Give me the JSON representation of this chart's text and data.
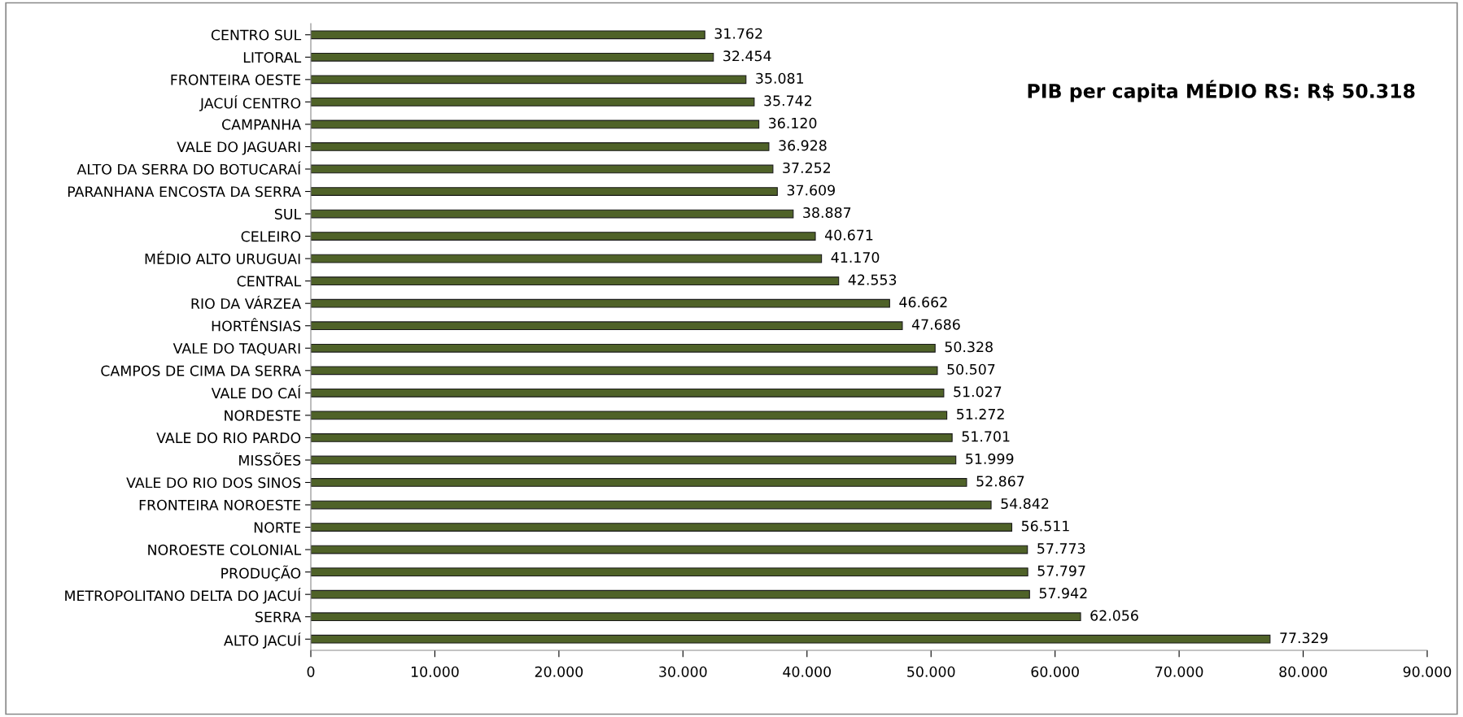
{
  "chart_data": {
    "type": "bar",
    "orientation": "horizontal",
    "title": "PIB per capita MÉDIO RS: R$ 50.318",
    "categories": [
      "CENTRO SUL",
      "LITORAL",
      "FRONTEIRA OESTE",
      "JACUÍ CENTRO",
      "CAMPANHA",
      "VALE DO JAGUARI",
      "ALTO DA SERRA DO BOTUCARAÍ",
      "PARANHANA ENCOSTA DA SERRA",
      "SUL",
      "CELEIRO",
      "MÉDIO ALTO URUGUAI",
      "CENTRAL",
      "RIO DA VÁRZEA",
      "HORTÊNSIAS",
      "VALE DO TAQUARI",
      "CAMPOS DE CIMA DA SERRA",
      "VALE DO CAÍ",
      "NORDESTE",
      "VALE DO RIO PARDO",
      "MISSÕES",
      "VALE DO RIO DOS SINOS",
      "FRONTEIRA NOROESTE",
      "NORTE",
      "NOROESTE COLONIAL",
      "PRODUÇÃO",
      "METROPOLITANO DELTA DO JACUÍ",
      "SERRA",
      "ALTO JACUÍ"
    ],
    "values": [
      31762,
      32454,
      35081,
      35742,
      36120,
      36928,
      37252,
      37609,
      38887,
      40671,
      41170,
      42553,
      46662,
      47686,
      50328,
      50507,
      51027,
      51272,
      51701,
      51999,
      52867,
      54842,
      56511,
      57773,
      57797,
      57942,
      62056,
      77329
    ],
    "value_labels": [
      "31.762",
      "32.454",
      "35.081",
      "35.742",
      "36.120",
      "36.928",
      "37.252",
      "37.609",
      "38.887",
      "40.671",
      "41.170",
      "42.553",
      "46.662",
      "47.686",
      "50.328",
      "50.507",
      "51.027",
      "51.272",
      "51.701",
      "51.999",
      "52.867",
      "54.842",
      "56.511",
      "57.773",
      "57.797",
      "57.942",
      "62.056",
      "77.329"
    ],
    "color": "#4f6228",
    "xlim": [
      0,
      90000
    ],
    "xticks": [
      0,
      {
        "value": 10000,
        "label": "10.000"
      },
      {
        "value": 20000,
        "label": "20.000"
      },
      {
        "value": 30000,
        "label": "30.000"
      },
      {
        "value": 40000,
        "label": "40.000"
      },
      {
        "value": 50000,
        "label": "50.000"
      },
      {
        "value": 60000,
        "label": "60.000"
      },
      {
        "value": 70000,
        "label": "70.000"
      },
      {
        "value": 80000,
        "label": "80.000"
      },
      {
        "value": 90000,
        "label": "90.000"
      }
    ],
    "grid": false,
    "legend": false
  }
}
